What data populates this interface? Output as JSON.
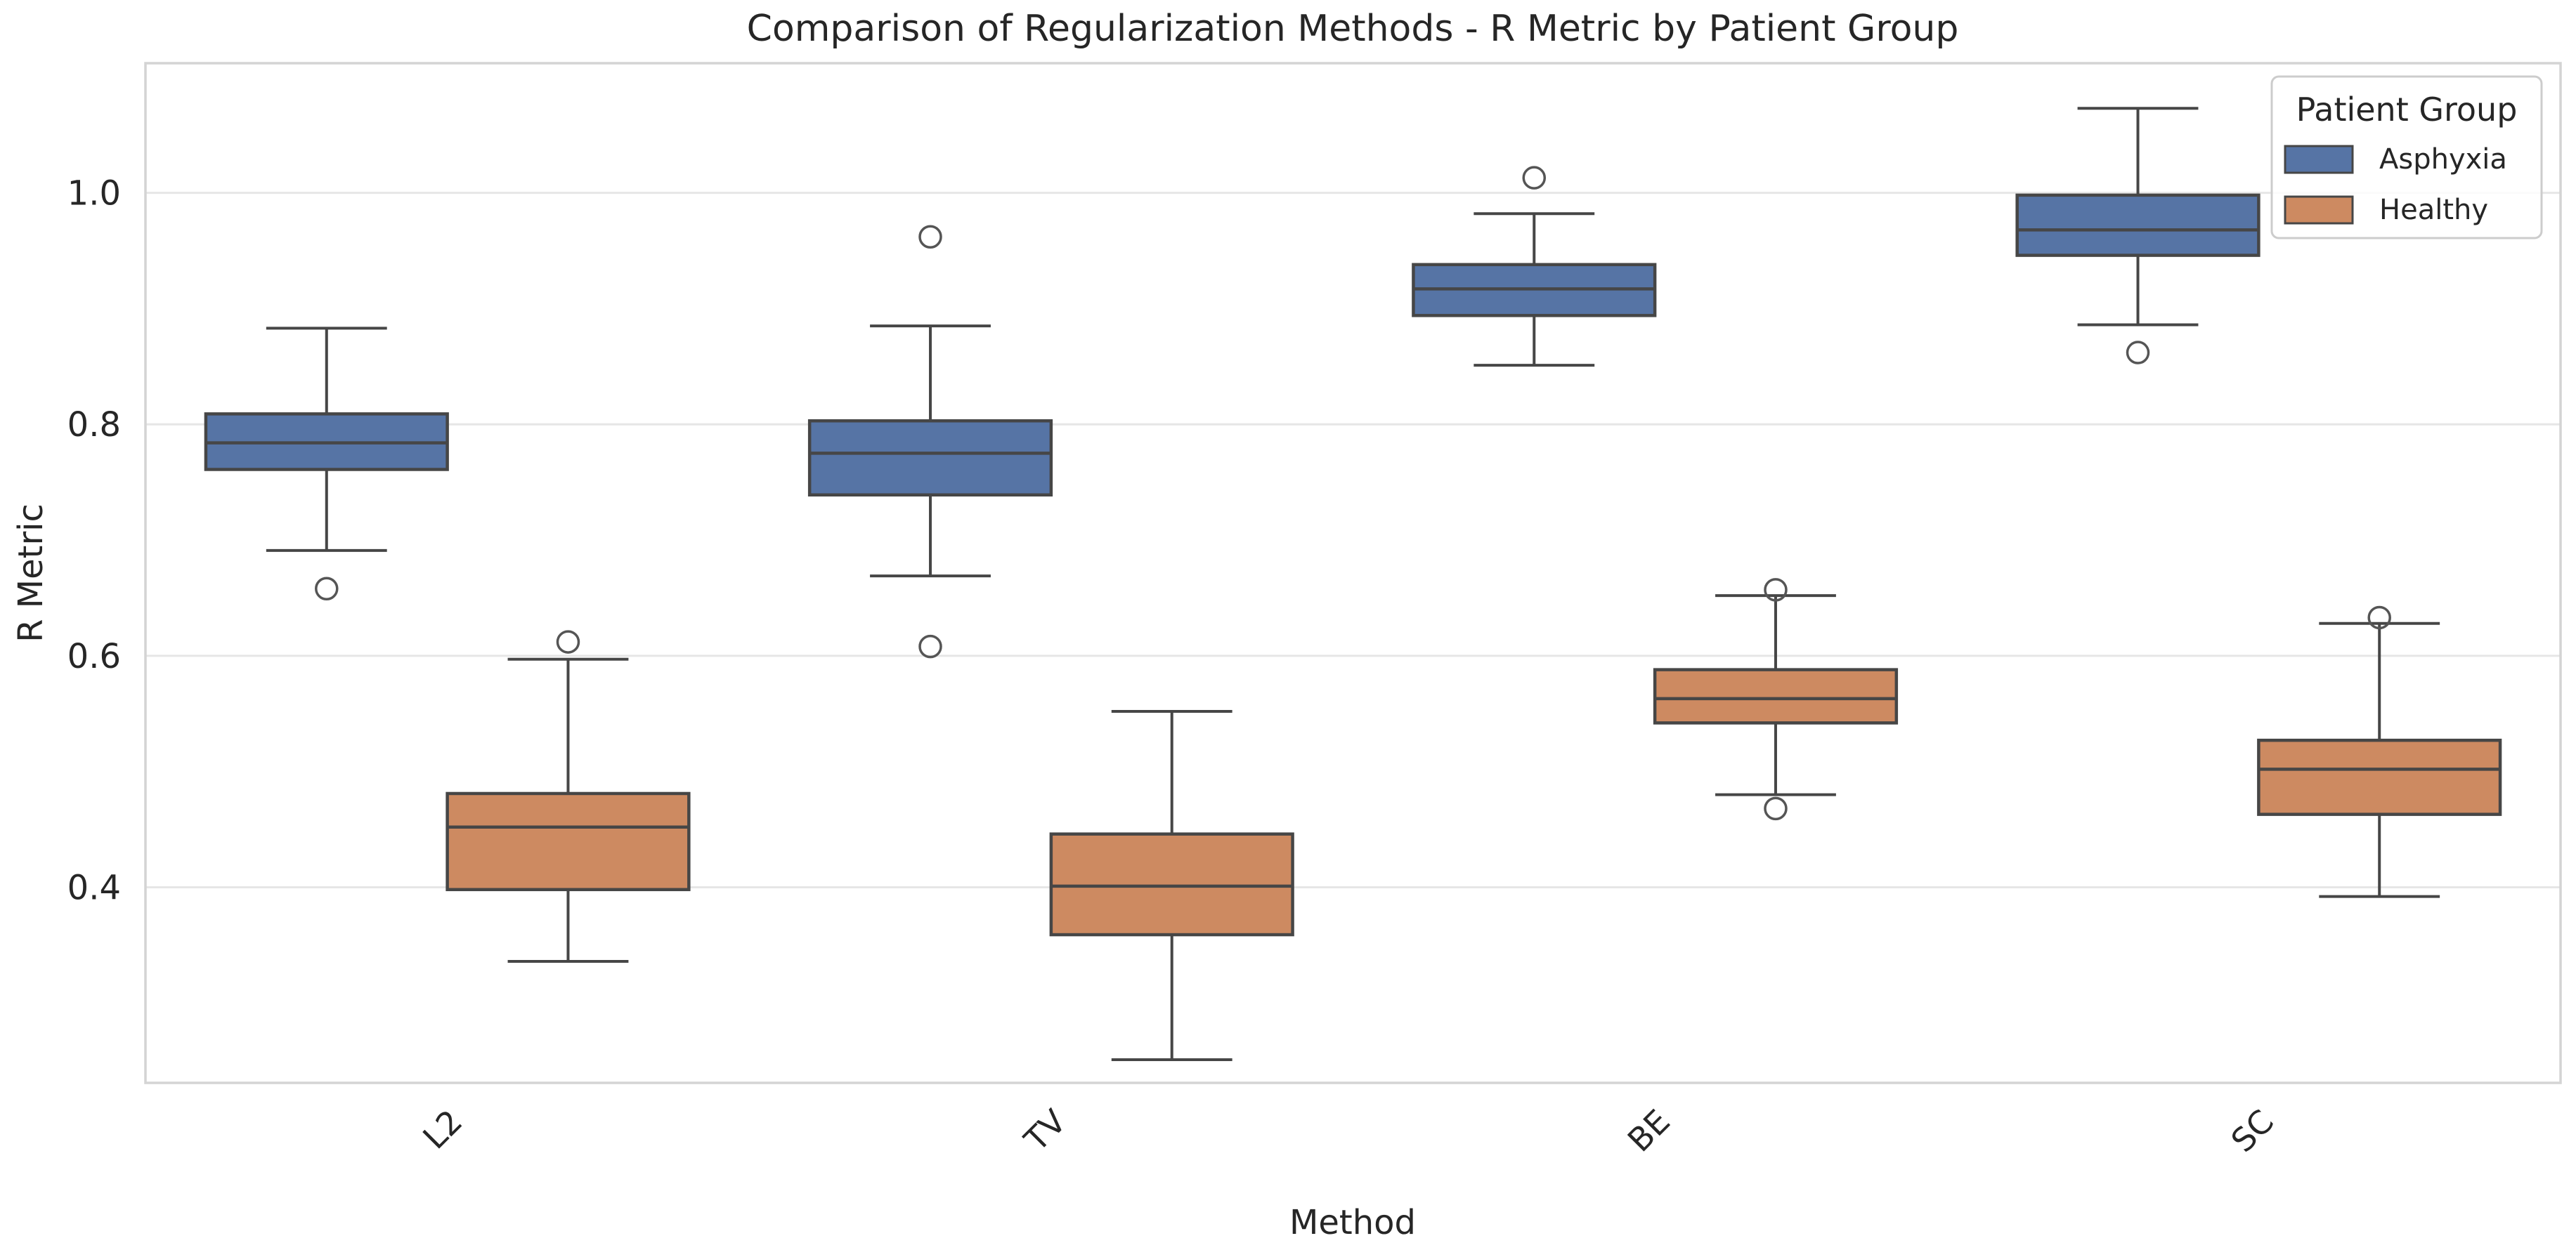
{
  "chart_data": {
    "type": "box",
    "title": "Comparison of Regularization Methods - R Metric by Patient Group",
    "xlabel": "Method",
    "ylabel": "R Metric",
    "categories": [
      "L2",
      "TV",
      "BE",
      "SC"
    ],
    "ytick_labels": [
      "0.4",
      "0.6",
      "0.8",
      "1.0"
    ],
    "yticks": [
      0.4,
      0.6,
      0.8,
      1.0
    ],
    "ylim": [
      0.231,
      1.112
    ],
    "grid": true,
    "legend": {
      "title": "Patient Group",
      "position": "upper right",
      "entries": [
        {
          "label": "Asphyxia",
          "color": "#5674A5"
        },
        {
          "label": "Healthy",
          "color": "#CD8A61"
        }
      ]
    },
    "series": [
      {
        "name": "Asphyxia",
        "color": "#5674A5",
        "boxes": [
          {
            "category": "L2",
            "whisker_low": 0.691,
            "q1": 0.761,
            "median": 0.784,
            "q3": 0.809,
            "whisker_high": 0.883,
            "outliers": [
              0.658
            ]
          },
          {
            "category": "TV",
            "whisker_low": 0.669,
            "q1": 0.739,
            "median": 0.775,
            "q3": 0.803,
            "whisker_high": 0.885,
            "outliers": [
              0.962,
              0.608
            ]
          },
          {
            "category": "BE",
            "whisker_low": 0.851,
            "q1": 0.894,
            "median": 0.917,
            "q3": 0.938,
            "whisker_high": 0.982,
            "outliers": [
              1.013
            ]
          },
          {
            "category": "SC",
            "whisker_low": 0.886,
            "q1": 0.946,
            "median": 0.968,
            "q3": 0.998,
            "whisker_high": 1.073,
            "outliers": [
              0.862
            ]
          }
        ]
      },
      {
        "name": "Healthy",
        "color": "#CD8A61",
        "boxes": [
          {
            "category": "L2",
            "whisker_low": 0.336,
            "q1": 0.398,
            "median": 0.452,
            "q3": 0.481,
            "whisker_high": 0.597,
            "outliers": [
              0.612
            ]
          },
          {
            "category": "TV",
            "whisker_low": 0.251,
            "q1": 0.359,
            "median": 0.401,
            "q3": 0.446,
            "whisker_high": 0.552,
            "outliers": []
          },
          {
            "category": "BE",
            "whisker_low": 0.48,
            "q1": 0.542,
            "median": 0.563,
            "q3": 0.588,
            "whisker_high": 0.652,
            "outliers": [
              0.657,
              0.468
            ]
          },
          {
            "category": "SC",
            "whisker_low": 0.392,
            "q1": 0.463,
            "median": 0.502,
            "q3": 0.527,
            "whisker_high": 0.628,
            "outliers": [
              0.633
            ]
          }
        ]
      }
    ],
    "style": {
      "box_edge_color": "#464646",
      "median_color": "#464646",
      "whisker_color": "#464646",
      "outlier_edge_color": "#555555",
      "grid_color": "#E6E6E6",
      "spine_color": "#D4D4D4",
      "text_color": "#262626",
      "background": "#FFFFFF"
    }
  }
}
